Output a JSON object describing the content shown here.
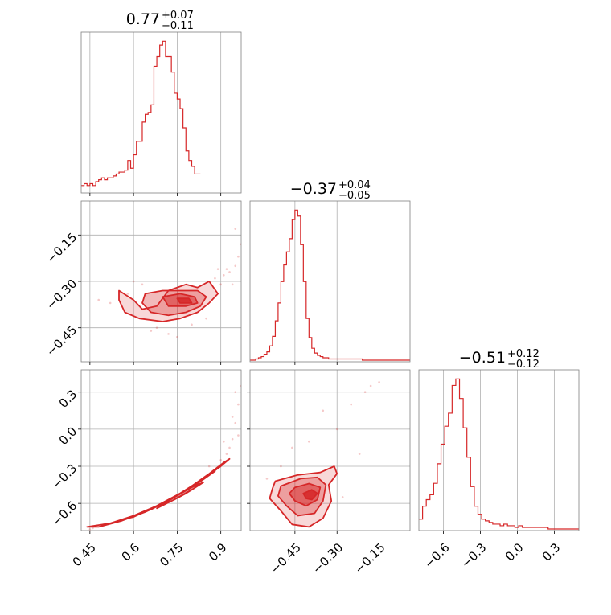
{
  "figure": {
    "accent_color": "#d62728",
    "grid_color": "#b0b0b0",
    "frame_color": "#808080"
  },
  "chart_data": [
    {
      "type": "histogram",
      "panel": "diag-0",
      "title_value": "0.77",
      "title_plus": "+0.07",
      "title_minus": "−0.11",
      "xlim": [
        0.42,
        0.97
      ],
      "xticks": [
        0.45,
        0.6,
        0.75,
        0.9
      ],
      "bin_edges_start": 0.42,
      "bin_width": 0.01,
      "counts": [
        3,
        4,
        3,
        4,
        3,
        5,
        6,
        7,
        6,
        7,
        7,
        8,
        9,
        10,
        10,
        11,
        16,
        12,
        19,
        26,
        26,
        36,
        40,
        41,
        45,
        65,
        70,
        76,
        78,
        70,
        70,
        62,
        51,
        48,
        43,
        33,
        21,
        16,
        13,
        9,
        9
      ]
    },
    {
      "type": "histogram",
      "panel": "diag-1",
      "title_value": "−0.37",
      "title_plus": "+0.04",
      "title_minus": "−0.05",
      "xlim": [
        -0.61,
        -0.04
      ],
      "xticks": [
        -0.45,
        -0.3,
        -0.15
      ],
      "xtick_labels": [
        "−0.45",
        "−0.30",
        "−0.15"
      ],
      "bin_edges_start": -0.61,
      "bin_width": 0.01,
      "counts": [
        0,
        0,
        1,
        2,
        3,
        5,
        7,
        12,
        20,
        33,
        48,
        66,
        80,
        91,
        102,
        118,
        126,
        121,
        97,
        66,
        35,
        19,
        10,
        6,
        4,
        3,
        2,
        2,
        1,
        1,
        1,
        1,
        1,
        1,
        1,
        1,
        1,
        1,
        1,
        1,
        0,
        0,
        0,
        0,
        0,
        0,
        0,
        0,
        0,
        0,
        0,
        0,
        0,
        0,
        0,
        0,
        0
      ]
    },
    {
      "type": "histogram",
      "panel": "diag-2",
      "title_value": "−0.51",
      "title_plus": "+0.12",
      "title_minus": "−0.12",
      "xlim": [
        -0.8,
        0.5
      ],
      "xticks": [
        -0.6,
        -0.3,
        0.0,
        0.3
      ],
      "xtick_labels": [
        "−0.6",
        "−0.3",
        "0.0",
        "0.3"
      ],
      "bin_edges_start": -0.8,
      "bin_width": 0.03,
      "counts": [
        6,
        14,
        18,
        21,
        28,
        40,
        52,
        63,
        71,
        88,
        92,
        80,
        62,
        44,
        26,
        14,
        9,
        6,
        5,
        4,
        3,
        3,
        2,
        3,
        2,
        2,
        1,
        2,
        1,
        1,
        1,
        1,
        1,
        1,
        1,
        0,
        0,
        0,
        0,
        0,
        0,
        0,
        0,
        0
      ]
    },
    {
      "type": "contour",
      "panel": "x1-y0",
      "xlim": [
        0.42,
        0.97
      ],
      "ylim": [
        -0.56,
        -0.04
      ],
      "yticks": [
        -0.15,
        -0.3,
        -0.45
      ],
      "ytick_labels": [
        "−0.15",
        "−0.30",
        "−0.45"
      ],
      "levels": [
        [
          [
            0.55,
            -0.33
          ],
          [
            0.6,
            -0.36
          ],
          [
            0.63,
            -0.39
          ],
          [
            0.68,
            -0.38
          ],
          [
            0.72,
            -0.33
          ],
          [
            0.78,
            -0.31
          ],
          [
            0.82,
            -0.32
          ],
          [
            0.86,
            -0.3
          ],
          [
            0.89,
            -0.34
          ],
          [
            0.86,
            -0.37
          ],
          [
            0.82,
            -0.4
          ],
          [
            0.76,
            -0.42
          ],
          [
            0.7,
            -0.43
          ],
          [
            0.62,
            -0.42
          ],
          [
            0.57,
            -0.4
          ],
          [
            0.55,
            -0.36
          ]
        ],
        [
          [
            0.64,
            -0.34
          ],
          [
            0.7,
            -0.33
          ],
          [
            0.76,
            -0.33
          ],
          [
            0.82,
            -0.33
          ],
          [
            0.85,
            -0.35
          ],
          [
            0.83,
            -0.38
          ],
          [
            0.78,
            -0.4
          ],
          [
            0.72,
            -0.41
          ],
          [
            0.66,
            -0.4
          ],
          [
            0.63,
            -0.37
          ]
        ],
        [
          [
            0.7,
            -0.35
          ],
          [
            0.76,
            -0.34
          ],
          [
            0.81,
            -0.35
          ],
          [
            0.82,
            -0.37
          ],
          [
            0.78,
            -0.38
          ],
          [
            0.72,
            -0.38
          ]
        ],
        [
          [
            0.75,
            -0.355
          ],
          [
            0.79,
            -0.355
          ],
          [
            0.8,
            -0.37
          ],
          [
            0.76,
            -0.37
          ]
        ]
      ],
      "scatter": [
        [
          0.88,
          -0.29
        ],
        [
          0.91,
          -0.28
        ],
        [
          0.93,
          -0.27
        ],
        [
          0.95,
          -0.25
        ],
        [
          0.96,
          -0.22
        ],
        [
          0.97,
          -0.18
        ],
        [
          0.92,
          -0.26
        ],
        [
          0.94,
          -0.31
        ],
        [
          0.9,
          -0.31
        ],
        [
          0.68,
          -0.45
        ],
        [
          0.72,
          -0.47
        ],
        [
          0.66,
          -0.46
        ],
        [
          0.6,
          -0.3
        ],
        [
          0.52,
          -0.37
        ],
        [
          0.48,
          -0.36
        ],
        [
          0.85,
          -0.42
        ],
        [
          0.8,
          -0.44
        ],
        [
          0.95,
          -0.13
        ],
        [
          0.89,
          -0.26
        ],
        [
          0.75,
          -0.48
        ],
        [
          0.58,
          -0.34
        ],
        [
          0.63,
          -0.31
        ]
      ]
    },
    {
      "type": "contour",
      "panel": "x1-y1",
      "xlim": [
        0.42,
        0.97
      ],
      "ylim": [
        -0.82,
        0.48
      ],
      "yticks": [
        0.3,
        0.0,
        -0.3,
        -0.6
      ],
      "ytick_labels": [
        "0.3",
        "0.0",
        "−0.3",
        "−0.6"
      ],
      "levels": [
        [
          [
            0.44,
            -0.79
          ],
          [
            0.52,
            -0.76
          ],
          [
            0.6,
            -0.7
          ],
          [
            0.68,
            -0.62
          ],
          [
            0.76,
            -0.52
          ],
          [
            0.84,
            -0.4
          ],
          [
            0.9,
            -0.3
          ],
          [
            0.93,
            -0.24
          ],
          [
            0.91,
            -0.27
          ],
          [
            0.86,
            -0.36
          ],
          [
            0.8,
            -0.46
          ],
          [
            0.72,
            -0.58
          ],
          [
            0.64,
            -0.67
          ],
          [
            0.56,
            -0.74
          ],
          [
            0.48,
            -0.79
          ]
        ],
        [
          [
            0.58,
            -0.72
          ],
          [
            0.66,
            -0.65
          ],
          [
            0.74,
            -0.55
          ],
          [
            0.82,
            -0.44
          ],
          [
            0.88,
            -0.34
          ],
          [
            0.84,
            -0.4
          ],
          [
            0.76,
            -0.52
          ],
          [
            0.68,
            -0.62
          ],
          [
            0.6,
            -0.71
          ]
        ],
        [
          [
            0.68,
            -0.64
          ],
          [
            0.74,
            -0.57
          ],
          [
            0.8,
            -0.49
          ],
          [
            0.84,
            -0.43
          ],
          [
            0.8,
            -0.47
          ],
          [
            0.74,
            -0.55
          ]
        ],
        [
          [
            0.74,
            -0.57
          ],
          [
            0.78,
            -0.52
          ],
          [
            0.8,
            -0.49
          ],
          [
            0.77,
            -0.53
          ]
        ]
      ],
      "scatter": [
        [
          0.93,
          -0.15
        ],
        [
          0.95,
          0.05
        ],
        [
          0.96,
          0.2
        ],
        [
          0.95,
          0.3
        ],
        [
          0.92,
          -0.2
        ],
        [
          0.9,
          -0.25
        ],
        [
          0.96,
          -0.05
        ],
        [
          0.94,
          0.1
        ],
        [
          0.88,
          -0.33
        ],
        [
          0.46,
          -0.8
        ],
        [
          0.45,
          -0.81
        ],
        [
          0.97,
          0.35
        ],
        [
          0.91,
          -0.1
        ],
        [
          0.94,
          -0.08
        ],
        [
          0.86,
          -0.3
        ]
      ]
    },
    {
      "type": "contour",
      "panel": "x2-y1",
      "xlim": [
        -0.61,
        -0.04
      ],
      "ylim": [
        -0.82,
        0.48
      ],
      "levels": [
        [
          [
            -0.52,
            -0.42
          ],
          [
            -0.44,
            -0.37
          ],
          [
            -0.36,
            -0.35
          ],
          [
            -0.31,
            -0.3
          ],
          [
            -0.3,
            -0.36
          ],
          [
            -0.33,
            -0.45
          ],
          [
            -0.32,
            -0.58
          ],
          [
            -0.35,
            -0.72
          ],
          [
            -0.4,
            -0.79
          ],
          [
            -0.46,
            -0.77
          ],
          [
            -0.5,
            -0.66
          ],
          [
            -0.54,
            -0.56
          ],
          [
            -0.53,
            -0.48
          ]
        ],
        [
          [
            -0.5,
            -0.46
          ],
          [
            -0.43,
            -0.4
          ],
          [
            -0.37,
            -0.39
          ],
          [
            -0.34,
            -0.45
          ],
          [
            -0.35,
            -0.58
          ],
          [
            -0.38,
            -0.68
          ],
          [
            -0.44,
            -0.7
          ],
          [
            -0.48,
            -0.62
          ],
          [
            -0.51,
            -0.54
          ]
        ],
        [
          [
            -0.45,
            -0.47
          ],
          [
            -0.4,
            -0.44
          ],
          [
            -0.36,
            -0.47
          ],
          [
            -0.37,
            -0.57
          ],
          [
            -0.41,
            -0.62
          ],
          [
            -0.45,
            -0.58
          ],
          [
            -0.47,
            -0.52
          ]
        ],
        [
          [
            -0.42,
            -0.52
          ],
          [
            -0.39,
            -0.49
          ],
          [
            -0.37,
            -0.52
          ],
          [
            -0.39,
            -0.57
          ],
          [
            -0.41,
            -0.56
          ]
        ]
      ],
      "scatter": [
        [
          -0.25,
          0.2
        ],
        [
          -0.18,
          0.35
        ],
        [
          -0.4,
          -0.1
        ],
        [
          -0.3,
          0.0
        ],
        [
          -0.22,
          -0.2
        ],
        [
          -0.5,
          -0.3
        ],
        [
          -0.55,
          -0.4
        ],
        [
          -0.28,
          -0.55
        ],
        [
          -0.46,
          -0.15
        ],
        [
          -0.35,
          0.15
        ],
        [
          -0.2,
          0.3
        ],
        [
          -0.15,
          0.38
        ]
      ]
    }
  ]
}
